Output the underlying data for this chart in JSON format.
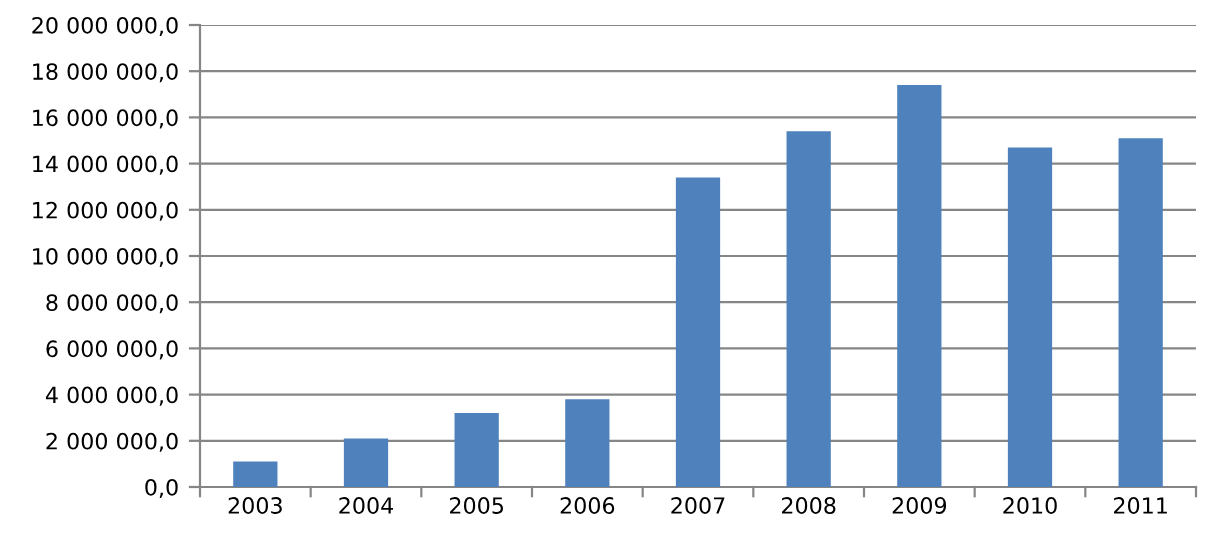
{
  "chart_data": {
    "type": "bar",
    "categories": [
      "2003",
      "2004",
      "2005",
      "2006",
      "2007",
      "2008",
      "2009",
      "2010",
      "2011"
    ],
    "values": [
      1100000,
      2100000,
      3200000,
      3800000,
      13400000,
      15400000,
      17400000,
      14700000,
      15100000
    ],
    "color": "#4f81bd",
    "ylim": [
      0,
      20000000
    ],
    "yticks": [
      {
        "value": 0,
        "label": "0,0"
      },
      {
        "value": 2000000,
        "label": "2 000 000,0"
      },
      {
        "value": 4000000,
        "label": "4 000 000,0"
      },
      {
        "value": 6000000,
        "label": "6 000 000,0"
      },
      {
        "value": 8000000,
        "label": "8 000 000,0"
      },
      {
        "value": 10000000,
        "label": "10 000 000,0"
      },
      {
        "value": 12000000,
        "label": "12 000 000,0"
      },
      {
        "value": 14000000,
        "label": "14 000 000,0"
      },
      {
        "value": 16000000,
        "label": "16 000 000,0"
      },
      {
        "value": 18000000,
        "label": "18 000 000,0"
      },
      {
        "value": 20000000,
        "label": "20 000 000,0"
      }
    ],
    "grid": "y",
    "legend": false
  }
}
